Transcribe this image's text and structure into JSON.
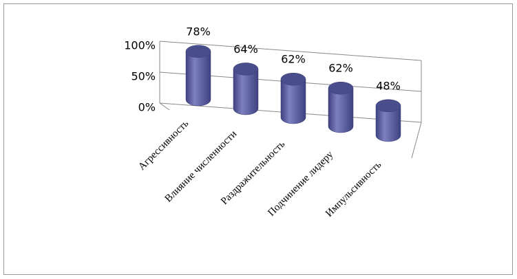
{
  "chart_data": {
    "type": "cylinder",
    "categories": [
      "Агрессивность",
      "Влияние численности",
      "Раздражительность",
      "Подчинение лидеру",
      "Импульсивность"
    ],
    "values": [
      78,
      64,
      62,
      62,
      48
    ],
    "value_labels": [
      "78%",
      "64%",
      "62%",
      "62%",
      "48%"
    ],
    "color": "#5b5e9e",
    "ylim": [
      0,
      100
    ],
    "yticks": [
      {
        "value": 0,
        "label": "0%"
      },
      {
        "value": 50,
        "label": "50%"
      },
      {
        "value": 100,
        "label": "100%"
      }
    ],
    "grid": true
  }
}
